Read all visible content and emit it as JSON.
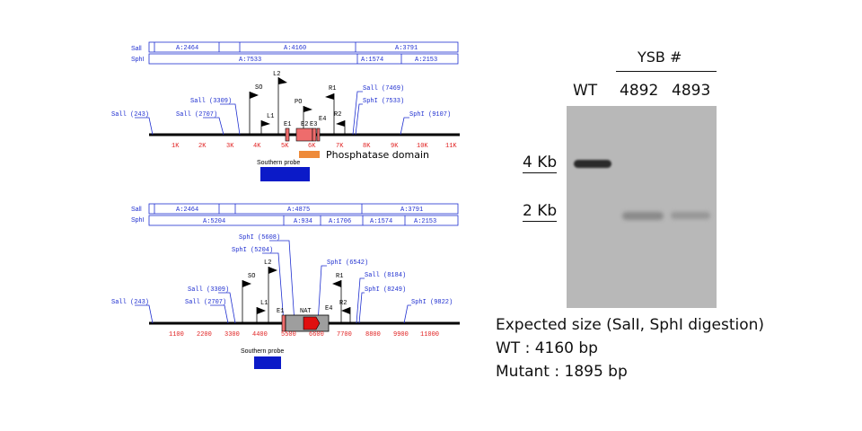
{
  "top_map": {
    "sall_row_label": "Sall",
    "sphl_row_label": "SphI",
    "sall_segments": [
      "A:2464",
      "A:4160",
      "A:3791"
    ],
    "sphl_segments": [
      "A:7533",
      "A:1574",
      "A:2153"
    ],
    "sites": [
      "Sall (243)",
      "Sall (2707)",
      "Sall (3309)",
      "Sall (7469)",
      "SphI (7533)",
      "SphI (9107)"
    ],
    "primers": [
      "L2",
      "SO",
      "L1",
      "PO",
      "R1",
      "R2"
    ],
    "exons": [
      "E1",
      "E2",
      "E3",
      "E4"
    ],
    "ticks": [
      "1K",
      "2K",
      "3K",
      "4K",
      "5K",
      "6K",
      "7K",
      "8K",
      "9K",
      "10K",
      "11K"
    ],
    "domain_label": "Phosphatase domain",
    "probe_label": "Southern probe"
  },
  "bottom_map": {
    "sall_row_label": "Sall",
    "sphl_row_label": "SphI",
    "sall_segments": [
      "A:2464",
      "A:4875",
      "A:3791"
    ],
    "sphl_segments": [
      "A:5204",
      "A:934",
      "A:1706",
      "A:1574",
      "A:2153"
    ],
    "sites": [
      "Sall (243)",
      "Sall (2707)",
      "Sall (3309)",
      "SphI (5204)",
      "SphI (5608)",
      "SphI (6542)",
      "Sall (8184)",
      "SphI (8249)",
      "SphI (9822)"
    ],
    "primers": [
      "L2",
      "SO",
      "L1",
      "R1",
      "R2"
    ],
    "exons": [
      "E1",
      "NAT",
      "E4"
    ],
    "ticks": [
      "1100",
      "2200",
      "3300",
      "4400",
      "5500",
      "6600",
      "7700",
      "8800",
      "9900",
      "11000"
    ],
    "probe_label": "Southern probe"
  },
  "gel": {
    "group_label": "YSB #",
    "lanes": [
      "WT",
      "4892",
      "4893"
    ],
    "markers": [
      "4 Kb",
      "2 Kb"
    ],
    "expected_lines": [
      "Expected size (SalI, SphI digestion)",
      "WT : 4160 bp",
      "Mutant : 1895 bp"
    ]
  }
}
